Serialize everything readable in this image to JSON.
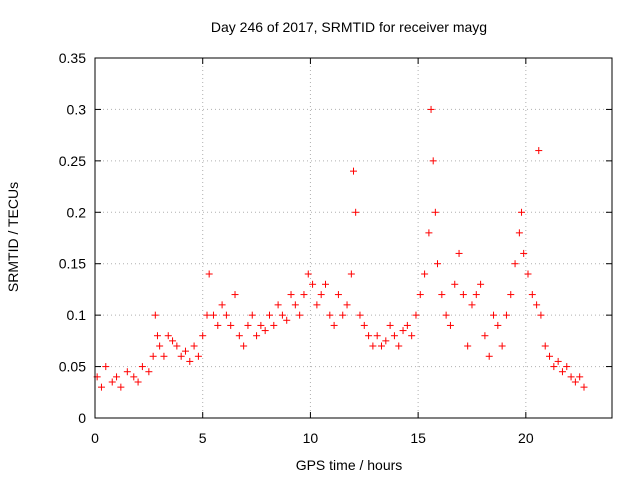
{
  "chart_data": {
    "type": "scatter",
    "title": "Day 246 of 2017, SRMTID for receiver mayg",
    "xlabel": "GPS time / hours",
    "ylabel": "SRMTID / TECUs",
    "xlim": [
      0,
      24
    ],
    "ylim": [
      0,
      0.35
    ],
    "xticks": [
      0,
      5,
      10,
      15,
      20
    ],
    "xtick_labels": [
      "0",
      "5",
      "10",
      "15",
      "20"
    ],
    "yticks": [
      0,
      0.05,
      0.1,
      0.15,
      0.2,
      0.25,
      0.3,
      0.35
    ],
    "ytick_labels": [
      "0",
      "0.05",
      "0.1",
      "0.15",
      "0.2",
      "0.25",
      "0.3",
      "0.35"
    ],
    "grid": true,
    "marker": "+",
    "series": [
      {
        "name": "SRMTID",
        "color": "#ff0000",
        "x": [
          0.1,
          0.3,
          0.5,
          0.8,
          1.0,
          1.2,
          1.5,
          1.8,
          2.0,
          2.2,
          2.5,
          2.7,
          2.8,
          2.9,
          3.0,
          3.2,
          3.4,
          3.6,
          3.8,
          4.0,
          4.2,
          4.4,
          4.6,
          4.8,
          5.0,
          5.2,
          5.3,
          5.5,
          5.7,
          5.9,
          6.1,
          6.3,
          6.5,
          6.7,
          6.9,
          7.1,
          7.3,
          7.5,
          7.7,
          7.9,
          8.1,
          8.3,
          8.5,
          8.7,
          8.9,
          9.1,
          9.3,
          9.5,
          9.7,
          9.9,
          10.1,
          10.3,
          10.5,
          10.7,
          10.9,
          11.1,
          11.3,
          11.5,
          11.7,
          11.9,
          12.0,
          12.1,
          12.3,
          12.5,
          12.7,
          12.9,
          13.1,
          13.3,
          13.5,
          13.7,
          13.9,
          14.1,
          14.3,
          14.5,
          14.7,
          14.9,
          15.1,
          15.3,
          15.5,
          15.6,
          15.7,
          15.8,
          15.9,
          16.1,
          16.3,
          16.5,
          16.7,
          16.9,
          17.1,
          17.3,
          17.5,
          17.7,
          17.9,
          18.1,
          18.3,
          18.5,
          18.7,
          18.9,
          19.1,
          19.3,
          19.5,
          19.7,
          19.8,
          19.9,
          20.1,
          20.3,
          20.5,
          20.6,
          20.7,
          20.9,
          21.1,
          21.3,
          21.5,
          21.7,
          21.9,
          22.1,
          22.3,
          22.5,
          22.7
        ],
        "y": [
          0.04,
          0.03,
          0.05,
          0.035,
          0.04,
          0.03,
          0.045,
          0.04,
          0.035,
          0.05,
          0.045,
          0.06,
          0.1,
          0.08,
          0.07,
          0.06,
          0.08,
          0.075,
          0.07,
          0.06,
          0.065,
          0.055,
          0.07,
          0.06,
          0.08,
          0.1,
          0.14,
          0.1,
          0.09,
          0.11,
          0.1,
          0.09,
          0.12,
          0.08,
          0.07,
          0.09,
          0.1,
          0.08,
          0.09,
          0.085,
          0.1,
          0.09,
          0.11,
          0.1,
          0.095,
          0.12,
          0.11,
          0.1,
          0.12,
          0.14,
          0.13,
          0.11,
          0.12,
          0.13,
          0.1,
          0.09,
          0.12,
          0.1,
          0.11,
          0.14,
          0.24,
          0.2,
          0.1,
          0.09,
          0.08,
          0.07,
          0.08,
          0.07,
          0.075,
          0.09,
          0.08,
          0.07,
          0.085,
          0.09,
          0.08,
          0.1,
          0.12,
          0.14,
          0.18,
          0.3,
          0.25,
          0.2,
          0.15,
          0.12,
          0.1,
          0.09,
          0.13,
          0.16,
          0.12,
          0.07,
          0.11,
          0.12,
          0.13,
          0.08,
          0.06,
          0.1,
          0.09,
          0.07,
          0.1,
          0.12,
          0.15,
          0.18,
          0.2,
          0.16,
          0.14,
          0.12,
          0.11,
          0.26,
          0.1,
          0.07,
          0.06,
          0.05,
          0.055,
          0.045,
          0.05,
          0.04,
          0.035,
          0.04,
          0.03
        ]
      }
    ]
  }
}
